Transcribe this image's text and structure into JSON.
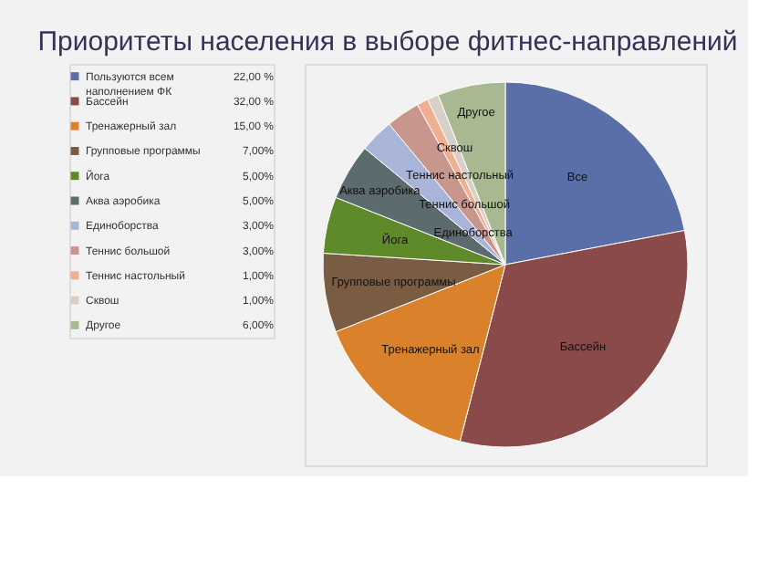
{
  "chart_data": {
    "type": "pie",
    "title": "Приоритеты населения в выборе фитнес-направлений",
    "categories": [
      "Пользуются всем наполнением ФК",
      "Бассейн",
      "Тренажерный зал",
      "Групповые программы",
      "Йога",
      "Аква аэробика",
      "Единоборства",
      "Теннис большой",
      "Теннис настольный",
      "Сквош",
      "Другое"
    ],
    "values": [
      22,
      32,
      15,
      7,
      5,
      5,
      3,
      3,
      1,
      1,
      6
    ],
    "value_labels": [
      "22,00 %",
      "32,00 %",
      "15,00 %",
      "7,00%",
      "5,00%",
      "5,00%",
      "3,00%",
      "3,00%",
      "1,00%",
      "1,00%",
      "6,00%"
    ],
    "colors": [
      "#5a6ea8",
      "#8b4a4a",
      "#d9822b",
      "#7a5c42",
      "#5e8a2a",
      "#5b6b6e",
      "#a8b4d8",
      "#c8968c",
      "#f0b090",
      "#d8d0c8",
      "#a8b890"
    ],
    "annotations": [
      "Все",
      "Бассейн",
      "Тренажерный зал",
      "Групповые программы",
      "Йога",
      "Аква аэробика",
      "Единоборства",
      "Теннис большой",
      "Теннис настольный",
      "Сквош",
      "Другое"
    ],
    "legend": "left"
  }
}
